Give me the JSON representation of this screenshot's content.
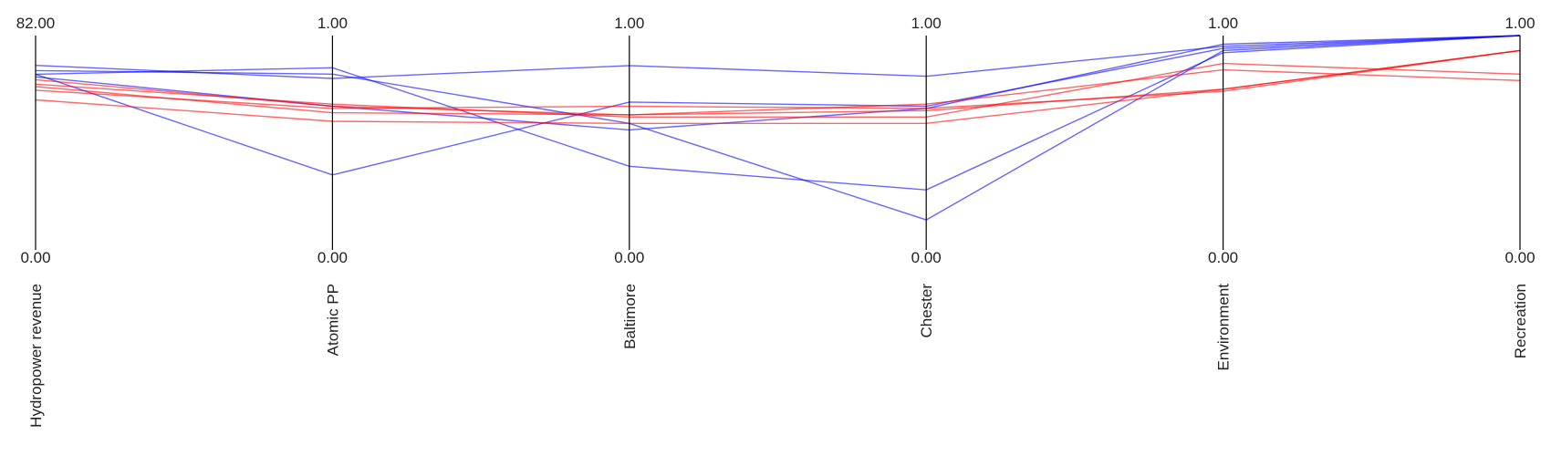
{
  "chart_data": {
    "type": "parallel_coordinates",
    "title": "",
    "axes": [
      {
        "name": "Hydropower revenue",
        "max_label": "82.00",
        "min_label": "0.00",
        "range": [
          0,
          82
        ]
      },
      {
        "name": "Atomic PP",
        "max_label": "1.00",
        "min_label": "0.00",
        "range": [
          0,
          1
        ]
      },
      {
        "name": "Baltimore",
        "max_label": "1.00",
        "min_label": "0.00",
        "range": [
          0,
          1
        ]
      },
      {
        "name": "Chester",
        "max_label": "1.00",
        "min_label": "0.00",
        "range": [
          0,
          1
        ]
      },
      {
        "name": "Environment",
        "max_label": "1.00",
        "min_label": "0.00",
        "range": [
          0,
          1
        ]
      },
      {
        "name": "Recreation",
        "max_label": "1.00",
        "min_label": "0.00",
        "range": [
          0,
          1
        ]
      }
    ],
    "series": [
      {
        "color": "#0000ff",
        "values": [
          67.2,
          0.85,
          0.39,
          0.28,
          0.92,
          1.0
        ]
      },
      {
        "color": "#0000ff",
        "values": [
          68.6,
          0.82,
          0.59,
          0.14,
          0.93,
          1.0
        ]
      },
      {
        "color": "#0000ff",
        "values": [
          67.2,
          0.35,
          0.69,
          0.67,
          0.94,
          1.0
        ]
      },
      {
        "color": "#0000ff",
        "values": [
          70.6,
          0.8,
          0.86,
          0.81,
          0.95,
          1.0
        ]
      },
      {
        "color": "#0000ff",
        "values": [
          66.2,
          0.67,
          0.56,
          0.66,
          0.96,
          1.0
        ]
      },
      {
        "color": "#ff0000",
        "values": [
          61.1,
          0.66,
          0.67,
          0.66,
          0.74,
          0.93
        ]
      },
      {
        "color": "#ff0000",
        "values": [
          62.5,
          0.64,
          0.63,
          0.65,
          0.75,
          0.93
        ]
      },
      {
        "color": "#ff0000",
        "values": [
          63.4,
          0.68,
          0.62,
          0.62,
          0.87,
          0.82
        ]
      },
      {
        "color": "#ff0000",
        "values": [
          65.1,
          0.67,
          0.63,
          0.68,
          0.84,
          0.79
        ]
      },
      {
        "color": "#ff0000",
        "values": [
          57.4,
          0.6,
          0.59,
          0.59,
          0.75,
          0.93
        ]
      }
    ]
  }
}
